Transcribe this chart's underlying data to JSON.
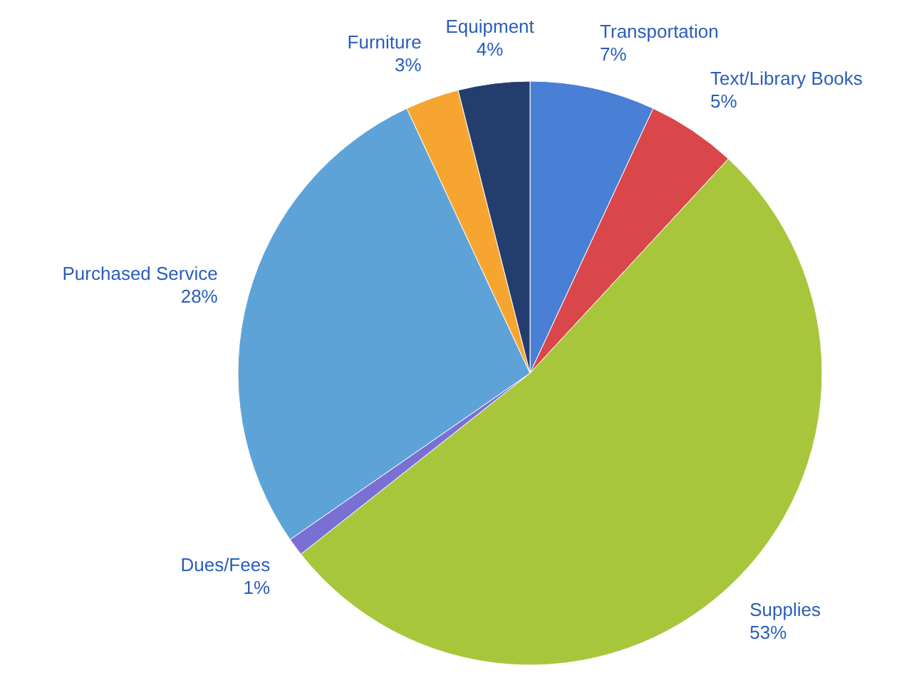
{
  "chart_data": {
    "type": "pie",
    "categories": [
      "Transportation",
      "Text/Library Books",
      "Supplies",
      "Dues/Fees",
      "Purchased Service",
      "Furniture",
      "Equipment"
    ],
    "values": [
      7,
      5,
      53,
      1,
      28,
      3,
      4
    ],
    "value_labels": [
      "7%",
      "5%",
      "53%",
      "1%",
      "28%",
      "3%",
      "4%"
    ],
    "colors": [
      "#4a7fd6",
      "#d9474b",
      "#a8c63c",
      "#7a70d4",
      "#5ea3d8",
      "#f7a531",
      "#233e6e"
    ]
  }
}
